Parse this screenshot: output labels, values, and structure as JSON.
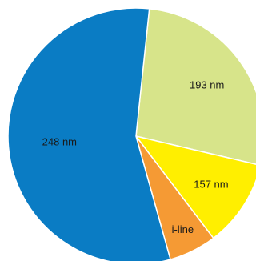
{
  "chart_data": {
    "type": "pie",
    "start_angle_deg": 6,
    "slices": [
      {
        "label": "193 nm",
        "value": 27,
        "color": "#d7e48a"
      },
      {
        "label": "157 nm",
        "value": 11,
        "color": "#ffef00"
      },
      {
        "label": "i-line",
        "value": 6,
        "color": "#f59a34"
      },
      {
        "label": "248 nm",
        "value": 56,
        "color": "#0a7cc4"
      }
    ]
  }
}
